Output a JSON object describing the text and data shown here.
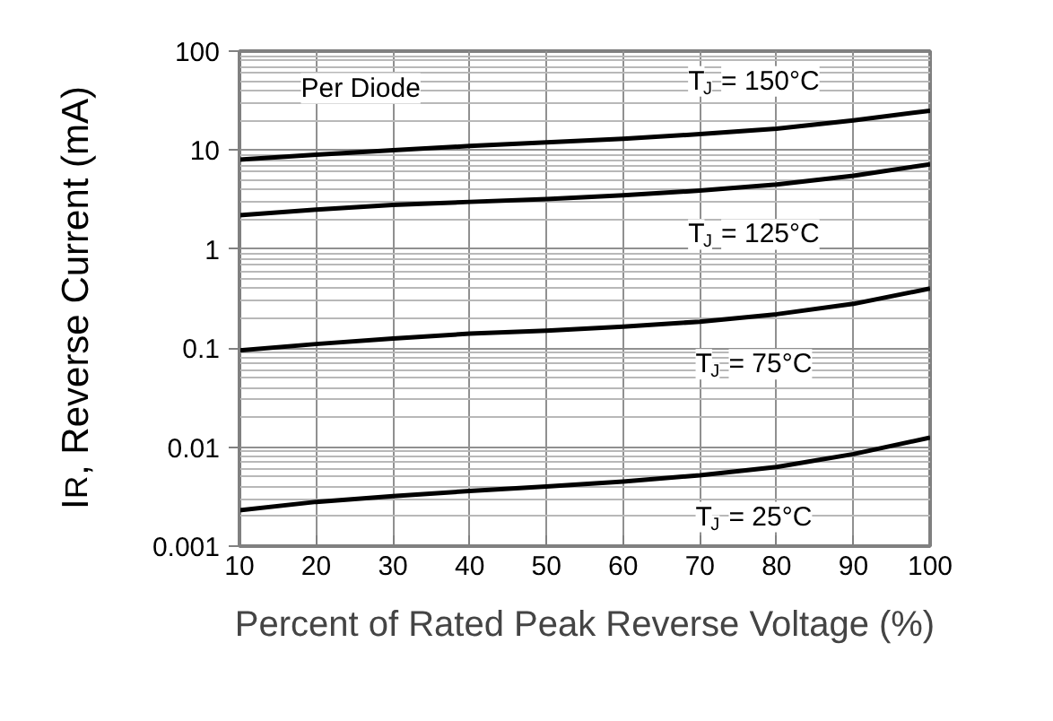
{
  "chart_data": {
    "type": "line",
    "xlabel": "Percent of Rated Peak Reverse Voltage (%)",
    "ylabel": "I$_{R}$, Reverse Current (mA)",
    "x": [
      10,
      20,
      30,
      40,
      50,
      60,
      70,
      80,
      90,
      100
    ],
    "series": [
      {
        "name": "T$_{J}$ = 150°C",
        "color": "#000000",
        "values": [
          8,
          9,
          10,
          11,
          12,
          13,
          14.5,
          16.5,
          20,
          25
        ]
      },
      {
        "name": "T$_{J}$ = 125°C",
        "color": "#000000",
        "values": [
          2.2,
          2.5,
          2.8,
          3.0,
          3.2,
          3.5,
          3.9,
          4.5,
          5.5,
          7.2
        ]
      },
      {
        "name": "T$_{J}$ = 75°C",
        "color": "#000000",
        "values": [
          0.095,
          0.11,
          0.125,
          0.14,
          0.15,
          0.165,
          0.185,
          0.22,
          0.28,
          0.4
        ]
      },
      {
        "name": "T$_{J}$ = 25°C",
        "color": "#000000",
        "values": [
          0.0023,
          0.0028,
          0.0032,
          0.0036,
          0.004,
          0.0045,
          0.0052,
          0.0063,
          0.0085,
          0.0125
        ]
      }
    ],
    "annotations": [
      "Per Diode"
    ],
    "xlim": [
      10,
      100
    ],
    "xticks": [
      10,
      20,
      30,
      40,
      50,
      60,
      70,
      80,
      90,
      100
    ],
    "ylim": [
      0.001,
      100
    ],
    "yticks": [
      0.001,
      0.01,
      0.1,
      1,
      10,
      100
    ],
    "log": "y",
    "grid": true,
    "marker": "none",
    "line_style": "solid",
    "legend": false
  }
}
